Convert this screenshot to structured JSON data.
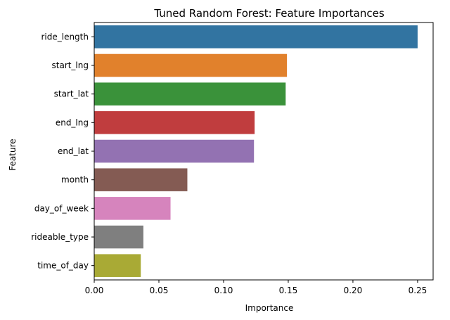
{
  "chart_data": {
    "type": "bar",
    "orientation": "horizontal",
    "title": "Tuned Random Forest: Feature Importances",
    "xlabel": "Importance",
    "ylabel": "Feature",
    "xlim": [
      0,
      0.262
    ],
    "xticks": [
      0.0,
      0.05,
      0.1,
      0.15,
      0.2,
      0.25
    ],
    "xtick_labels": [
      "0.00",
      "0.05",
      "0.10",
      "0.15",
      "0.20",
      "0.25"
    ],
    "grid": false,
    "categories": [
      "ride_length",
      "start_lng",
      "start_lat",
      "end_lng",
      "end_lat",
      "month",
      "day_of_week",
      "rideable_type",
      "time_of_day"
    ],
    "values": [
      0.25,
      0.149,
      0.148,
      0.124,
      0.1235,
      0.072,
      0.059,
      0.038,
      0.036
    ],
    "colors": [
      "#3274a1",
      "#e1812c",
      "#3a923a",
      "#c03d3e",
      "#9372b2",
      "#845b53",
      "#d684bd",
      "#7f7f7f",
      "#a9aa35"
    ]
  }
}
